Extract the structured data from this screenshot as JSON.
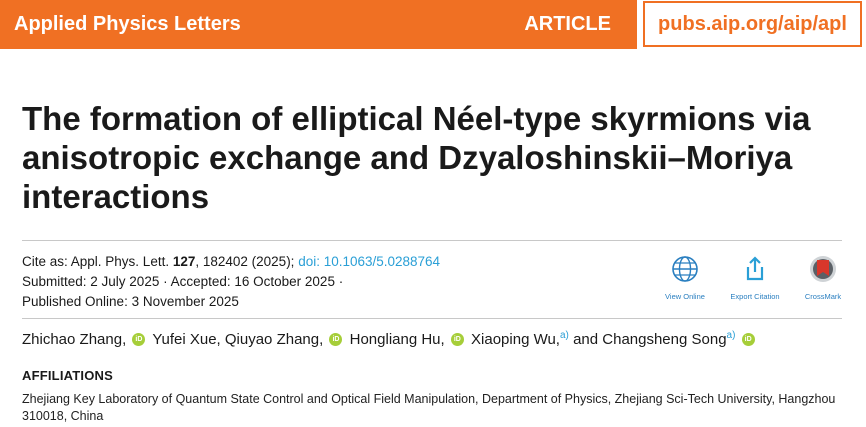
{
  "header": {
    "journal": "Applied Physics Letters",
    "article_type": "ARTICLE",
    "site": "pubs.aip.org/aip/apl"
  },
  "title": "The formation of elliptical Néel-type skyrmions via anisotropic exchange and Dzyaloshinskii–Moriya interactions",
  "citation": {
    "prefix": "Cite as: Appl. Phys. Lett. ",
    "volume": "127",
    "rest": ", 182402 (2025); ",
    "doi": "doi: 10.1063/5.0288764",
    "submitted": "Submitted: 2 July 2025 · Accepted: 16 October 2025 ·",
    "published": "Published Online: 3 November 2025"
  },
  "actions": [
    {
      "label": "View Online",
      "icon": "globe-icon"
    },
    {
      "label": "Export Citation",
      "icon": "export-icon"
    },
    {
      "label": "CrossMark",
      "icon": "crossmark-icon"
    }
  ],
  "authors": {
    "a1": "Zhichao Zhang,",
    "a2": "Yufei Xue,",
    "a3": "Qiuyao Zhang,",
    "a4": "Hongliang Hu,",
    "a5": "Xiaoping Wu,",
    "a5_sup": "a)",
    "conj": "and",
    "a6": "Changsheng Song",
    "a6_sup": "a)",
    "orcid_text": "iD"
  },
  "affiliations": {
    "heading": "AFFILIATIONS",
    "text": "Zhejiang Key Laboratory of Quantum State Control and Optical Field Manipulation, Department of Physics, Zhejiang Sci-Tech University, Hangzhou 310018, China"
  },
  "colors": {
    "brand_orange": "#f07023",
    "link_blue": "#2a9fd6",
    "orcid_green": "#a6ce39"
  }
}
